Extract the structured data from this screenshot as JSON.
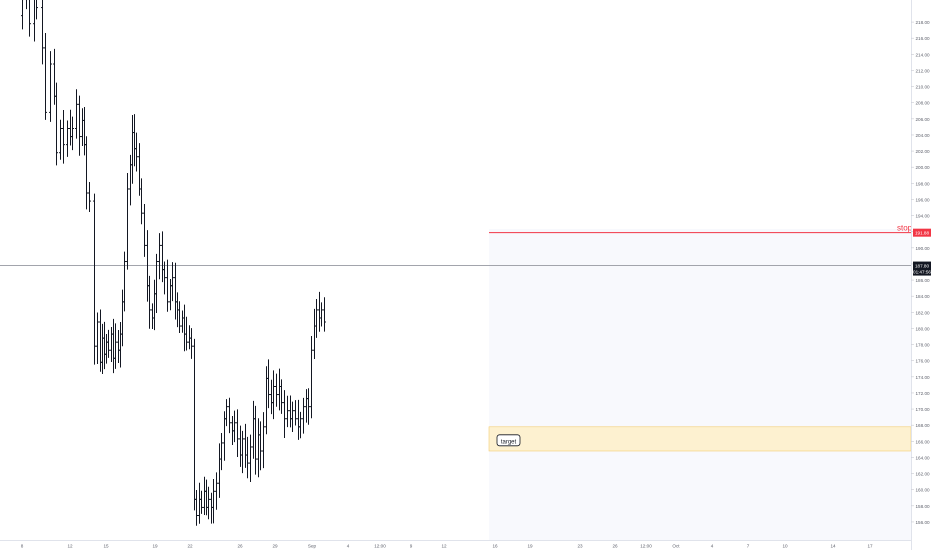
{
  "chart_data": {
    "type": "ohlc",
    "x_labels": [
      "8",
      "12",
      "15",
      "19",
      "22",
      "26",
      "29",
      "Sep",
      "4",
      "12:00",
      "9",
      "12",
      "16",
      "19",
      "23",
      "26",
      "12:00",
      "Oct",
      "4",
      "7",
      "10",
      "14",
      "17"
    ],
    "y_ticks": [
      "218.00",
      "216.00",
      "214.00",
      "212.00",
      "210.00",
      "208.00",
      "206.00",
      "204.00",
      "202.00",
      "200.00",
      "198.00",
      "196.00",
      "194.00",
      "192.00",
      "190.00",
      "188.00",
      "186.00",
      "184.00",
      "182.00",
      "180.00",
      "178.00",
      "176.00",
      "174.00",
      "172.00",
      "170.00",
      "168.00",
      "166.00",
      "164.00",
      "162.00",
      "160.00",
      "158.00",
      "156.00"
    ],
    "ylim": [
      155.0,
      219.5
    ],
    "series": [
      {
        "y_start": 218.8,
        "points": [
          [
            0,
            2.0
          ],
          [
            4,
            0.0
          ],
          [
            3,
            -3.0
          ],
          [
            5,
            4.0
          ],
          [
            2,
            -2.0
          ],
          [
            6,
            -5.0
          ],
          [
            3,
            -8.0
          ],
          [
            5,
            6.0
          ],
          [
            4,
            -4.0
          ],
          [
            2,
            -7.0
          ],
          [
            4,
            3.0
          ],
          [
            3,
            -2.0
          ],
          [
            4,
            2.0
          ],
          [
            3,
            -1.0
          ],
          [
            2,
            1.0
          ],
          [
            4,
            3.0
          ],
          [
            3,
            -4.0
          ],
          [
            3,
            2.0
          ],
          [
            2,
            -3.0
          ],
          [
            2,
            -6.0
          ],
          [
            3,
            -1.0
          ],
          [
            5,
            -18.0
          ],
          [
            3,
            3.0
          ],
          [
            3,
            -5.0
          ],
          [
            2,
            3.0
          ],
          [
            2,
            -2.0
          ],
          [
            2,
            1.5
          ],
          [
            2,
            -1.0
          ],
          [
            3,
            2.0
          ],
          [
            2,
            -3.0
          ],
          [
            2,
            2.0
          ],
          [
            3,
            -1.0
          ],
          [
            2,
            2.0
          ],
          [
            2,
            4.0
          ],
          [
            2,
            5.0
          ],
          [
            3,
            9.0
          ],
          [
            3,
            3.0
          ],
          [
            2,
            4.0
          ],
          [
            2,
            -2.0
          ],
          [
            2,
            -1.0
          ],
          [
            3,
            -4.0
          ],
          [
            2,
            -3.0
          ],
          [
            3,
            -4.0
          ],
          [
            3,
            -5.0
          ],
          [
            2,
            -3.0
          ],
          [
            3,
            -1.0
          ],
          [
            2,
            3.0
          ],
          [
            2,
            4.0
          ],
          [
            3,
            2.0
          ],
          [
            3,
            -3.0
          ],
          [
            2,
            -1.0
          ],
          [
            3,
            -3.0
          ],
          [
            3,
            2.0
          ],
          [
            2,
            1.0
          ],
          [
            3,
            -3.0
          ],
          [
            2,
            -1.0
          ],
          [
            2,
            -2.0
          ],
          [
            3,
            1.0
          ],
          [
            2,
            -2.0
          ],
          [
            2,
            -1.0
          ],
          [
            3,
            0.5
          ],
          [
            2,
            -1.0
          ],
          [
            3,
            -19.0
          ],
          [
            2,
            -2.0
          ],
          [
            3,
            2.0
          ],
          [
            2,
            -1.0
          ],
          [
            3,
            2.0
          ],
          [
            2,
            -2.0
          ],
          [
            2,
            1.0
          ],
          [
            3,
            -1.0
          ],
          [
            2,
            2.0
          ],
          [
            3,
            1.0
          ],
          [
            3,
            3.0
          ],
          [
            2,
            2.0
          ],
          [
            3,
            3.0
          ],
          [
            2,
            1.5
          ],
          [
            3,
            -2.0
          ],
          [
            3,
            -1.0
          ],
          [
            2,
            1.0
          ],
          [
            3,
            -2.0
          ],
          [
            3,
            -2.0
          ],
          [
            2,
            2.0
          ],
          [
            3,
            -2.0
          ],
          [
            2,
            -1.0
          ],
          [
            3,
            2.0
          ],
          [
            3,
            3.5
          ],
          [
            2,
            -5.0
          ],
          [
            3,
            3.0
          ],
          [
            2,
            -2.0
          ],
          [
            3,
            3.0
          ],
          [
            3,
            6.0
          ],
          [
            2,
            -2.0
          ],
          [
            3,
            -1.0
          ],
          [
            2,
            2.0
          ],
          [
            3,
            -1.0
          ],
          [
            3,
            1.0
          ],
          [
            2,
            -2.0
          ],
          [
            3,
            -2.0
          ],
          [
            3,
            1.0
          ],
          [
            3,
            -1.0
          ],
          [
            2,
            1.0
          ],
          [
            3,
            -1.0
          ],
          [
            3,
            -1.0
          ],
          [
            2,
            1.0
          ],
          [
            3,
            1.5
          ],
          [
            3,
            1.0
          ],
          [
            2,
            -1.0
          ],
          [
            3,
            7.0
          ],
          [
            3,
            3.0
          ],
          [
            2,
            2.0
          ],
          [
            3,
            -1.0
          ],
          [
            2,
            1.0
          ],
          [
            3,
            -1.5
          ]
        ]
      }
    ],
    "last_price": "187.80",
    "countdown": "01:47:56",
    "stop": {
      "label": "stop",
      "price": "191.88",
      "value": 191.88
    },
    "target": {
      "label": "target",
      "y_top": 167.8,
      "y_bottom": 164.8
    },
    "current_price_line": 187.8,
    "grid": false,
    "colors": {
      "bars": "#131722",
      "stop": "#f23645",
      "target_fill": "#fdf1d0",
      "target_border": "#f5cd70",
      "price_line": "#9598a1",
      "axis_text": "#5d606b",
      "label_bg": "#131722"
    }
  }
}
